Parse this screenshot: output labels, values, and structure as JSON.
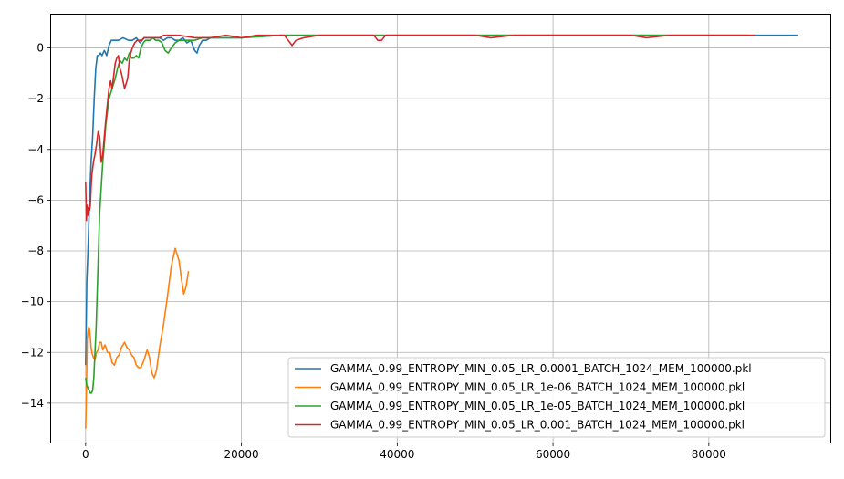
{
  "chart_data": {
    "type": "line",
    "title": "",
    "xlabel": "",
    "ylabel": "",
    "xlim": [
      -4550,
      95600
    ],
    "ylim": [
      -15.55,
      1.35
    ],
    "xticks": [
      0,
      20000,
      40000,
      60000,
      80000
    ],
    "xtick_labels": [
      "0",
      "20000",
      "40000",
      "60000",
      "80000"
    ],
    "yticks": [
      0,
      -2,
      -4,
      -6,
      -8,
      -10,
      -12,
      -14
    ],
    "ytick_labels": [
      "0",
      "−2",
      "−4",
      "−6",
      "−8",
      "−10",
      "−12",
      "−14"
    ],
    "grid": true,
    "legend_position": "lower-right",
    "series": [
      {
        "name": "GAMMA_0.99_ENTROPY_MIN_0.05_LR_0.0001_BATCH_1024_MEM_100000.pkl",
        "color": "#1f77b4",
        "x": [
          0,
          150,
          300,
          500,
          700,
          900,
          1100,
          1300,
          1500,
          1700,
          1900,
          2100,
          2400,
          2700,
          3000,
          3300,
          3700,
          4200,
          4800,
          5500,
          6000,
          6500,
          7000,
          7500,
          8000,
          8500,
          9000,
          9500,
          10000,
          10500,
          11000,
          11500,
          12000,
          12500,
          13000,
          13500,
          14000,
          14300,
          14600,
          15000,
          15500,
          16000,
          17000,
          18000,
          20000,
          25000,
          30000,
          35000,
          40000,
          45000,
          50000,
          55000,
          60000,
          65000,
          70000,
          75000,
          80000,
          85000,
          88000,
          90000,
          91500
        ],
        "y": [
          -12.5,
          -9.2,
          -8.0,
          -6.0,
          -4.5,
          -3.5,
          -2.0,
          -0.8,
          -0.3,
          -0.3,
          -0.2,
          -0.3,
          -0.1,
          -0.3,
          0.1,
          0.3,
          0.3,
          0.3,
          0.4,
          0.3,
          0.3,
          0.4,
          0.2,
          0.4,
          0.4,
          0.4,
          0.4,
          0.4,
          0.3,
          0.4,
          0.4,
          0.3,
          0.3,
          0.4,
          0.2,
          0.3,
          -0.1,
          -0.2,
          0.1,
          0.3,
          0.3,
          0.4,
          0.4,
          0.4,
          0.4,
          0.5,
          0.5,
          0.5,
          0.5,
          0.5,
          0.5,
          0.5,
          0.5,
          0.5,
          0.5,
          0.5,
          0.5,
          0.5,
          0.5,
          0.5,
          0.5
        ]
      },
      {
        "name": "GAMMA_0.99_ENTROPY_MIN_0.05_LR_1e-06_BATCH_1024_MEM_100000.pkl",
        "color": "#ff7f0e",
        "x": [
          0,
          100,
          200,
          300,
          400,
          500,
          600,
          700,
          800,
          1000,
          1200,
          1400,
          1600,
          1800,
          2000,
          2200,
          2500,
          2800,
          3100,
          3400,
          3700,
          4000,
          4300,
          4600,
          5000,
          5300,
          5600,
          5900,
          6200,
          6500,
          6800,
          7100,
          7500,
          7900,
          8200,
          8500,
          8800,
          9100,
          9500,
          10000,
          10500,
          11000,
          11500,
          12000,
          12300,
          12600,
          12900,
          13200
        ],
        "y": [
          -15.0,
          -13.5,
          -11.5,
          -11.2,
          -11.0,
          -11.1,
          -11.4,
          -11.8,
          -12.0,
          -12.2,
          -12.3,
          -12.0,
          -11.9,
          -11.6,
          -11.6,
          -11.9,
          -11.7,
          -12.0,
          -12.0,
          -12.4,
          -12.5,
          -12.2,
          -12.1,
          -11.8,
          -11.6,
          -11.8,
          -11.9,
          -12.1,
          -12.2,
          -12.5,
          -12.6,
          -12.6,
          -12.3,
          -11.9,
          -12.2,
          -12.8,
          -13.0,
          -12.7,
          -11.8,
          -10.9,
          -9.8,
          -8.6,
          -7.9,
          -8.4,
          -9.1,
          -9.7,
          -9.4,
          -8.8
        ]
      },
      {
        "name": "GAMMA_0.99_ENTROPY_MIN_0.05_LR_1e-05_BATCH_1024_MEM_100000.pkl",
        "color": "#2ca02c",
        "x": [
          0,
          150,
          300,
          450,
          600,
          750,
          900,
          1050,
          1200,
          1350,
          1500,
          1650,
          1800,
          2000,
          2200,
          2400,
          2600,
          2800,
          3000,
          3200,
          3500,
          3800,
          4100,
          4400,
          4700,
          5000,
          5300,
          5600,
          5900,
          6200,
          6500,
          6800,
          7100,
          7400,
          7700,
          8000,
          8300,
          8600,
          9000,
          9400,
          9800,
          10200,
          10600,
          11000,
          11500,
          12000,
          13000,
          14000,
          15000,
          16000,
          17000,
          18000,
          20000,
          25000,
          30000,
          35000,
          40000,
          45000,
          50000,
          55000,
          60000,
          65000,
          70000,
          75000,
          80000,
          85000
        ],
        "y": [
          -13.0,
          -13.3,
          -13.4,
          -13.5,
          -13.6,
          -13.6,
          -13.5,
          -13.0,
          -12.0,
          -11.0,
          -9.5,
          -8.0,
          -6.5,
          -5.5,
          -4.5,
          -3.8,
          -3.0,
          -2.5,
          -2.0,
          -1.8,
          -1.5,
          -1.2,
          -0.8,
          -0.5,
          -0.6,
          -0.4,
          -0.5,
          -0.2,
          -0.4,
          -0.4,
          -0.3,
          -0.4,
          0.0,
          0.2,
          0.3,
          0.3,
          0.3,
          0.4,
          0.3,
          0.3,
          0.2,
          -0.1,
          -0.2,
          0.0,
          0.2,
          0.3,
          0.3,
          0.3,
          0.4,
          0.4,
          0.4,
          0.4,
          0.4,
          0.5,
          0.5,
          0.5,
          0.5,
          0.5,
          0.5,
          0.5,
          0.5,
          0.5,
          0.5,
          0.5,
          0.5,
          0.5
        ]
      },
      {
        "name": "GAMMA_0.99_ENTROPY_MIN_0.05_LR_0.001_BATCH_1024_MEM_100000.pkl",
        "color": "#d62728",
        "x": [
          0,
          100,
          200,
          300,
          400,
          500,
          600,
          700,
          800,
          1000,
          1200,
          1400,
          1600,
          1800,
          2000,
          2200,
          2400,
          2600,
          2800,
          3000,
          3200,
          3400,
          3600,
          3800,
          4000,
          4200,
          4400,
          4600,
          4800,
          5000,
          5200,
          5400,
          5600,
          5800,
          6000,
          6300,
          6600,
          6900,
          7200,
          7500,
          8000,
          8500,
          9000,
          9500,
          10000,
          11000,
          12000,
          14000,
          16000,
          18000,
          20000,
          22000,
          24000,
          25500,
          26000,
          26500,
          27000,
          28000,
          30000,
          33000,
          36000,
          37000,
          37500,
          38000,
          38500,
          40000,
          45000,
          50000,
          52000,
          55000,
          60000,
          65000,
          70000,
          72000,
          75000,
          80000,
          85000,
          86000
        ],
        "y": [
          -5.3,
          -6.8,
          -6.2,
          -6.6,
          -6.3,
          -6.4,
          -6.2,
          -5.5,
          -5.0,
          -4.5,
          -4.2,
          -3.8,
          -3.3,
          -3.5,
          -4.5,
          -4.2,
          -3.5,
          -2.8,
          -2.2,
          -1.6,
          -1.3,
          -1.6,
          -1.1,
          -0.6,
          -0.4,
          -0.3,
          -0.8,
          -1.0,
          -1.3,
          -1.6,
          -1.4,
          -1.2,
          -0.5,
          -0.2,
          0.0,
          0.2,
          0.3,
          0.3,
          0.3,
          0.4,
          0.4,
          0.4,
          0.4,
          0.4,
          0.5,
          0.5,
          0.5,
          0.4,
          0.4,
          0.5,
          0.4,
          0.5,
          0.5,
          0.5,
          0.3,
          0.1,
          0.3,
          0.4,
          0.5,
          0.5,
          0.5,
          0.5,
          0.3,
          0.3,
          0.5,
          0.5,
          0.5,
          0.5,
          0.4,
          0.5,
          0.5,
          0.5,
          0.5,
          0.4,
          0.5,
          0.5,
          0.5,
          0.5
        ]
      }
    ]
  }
}
